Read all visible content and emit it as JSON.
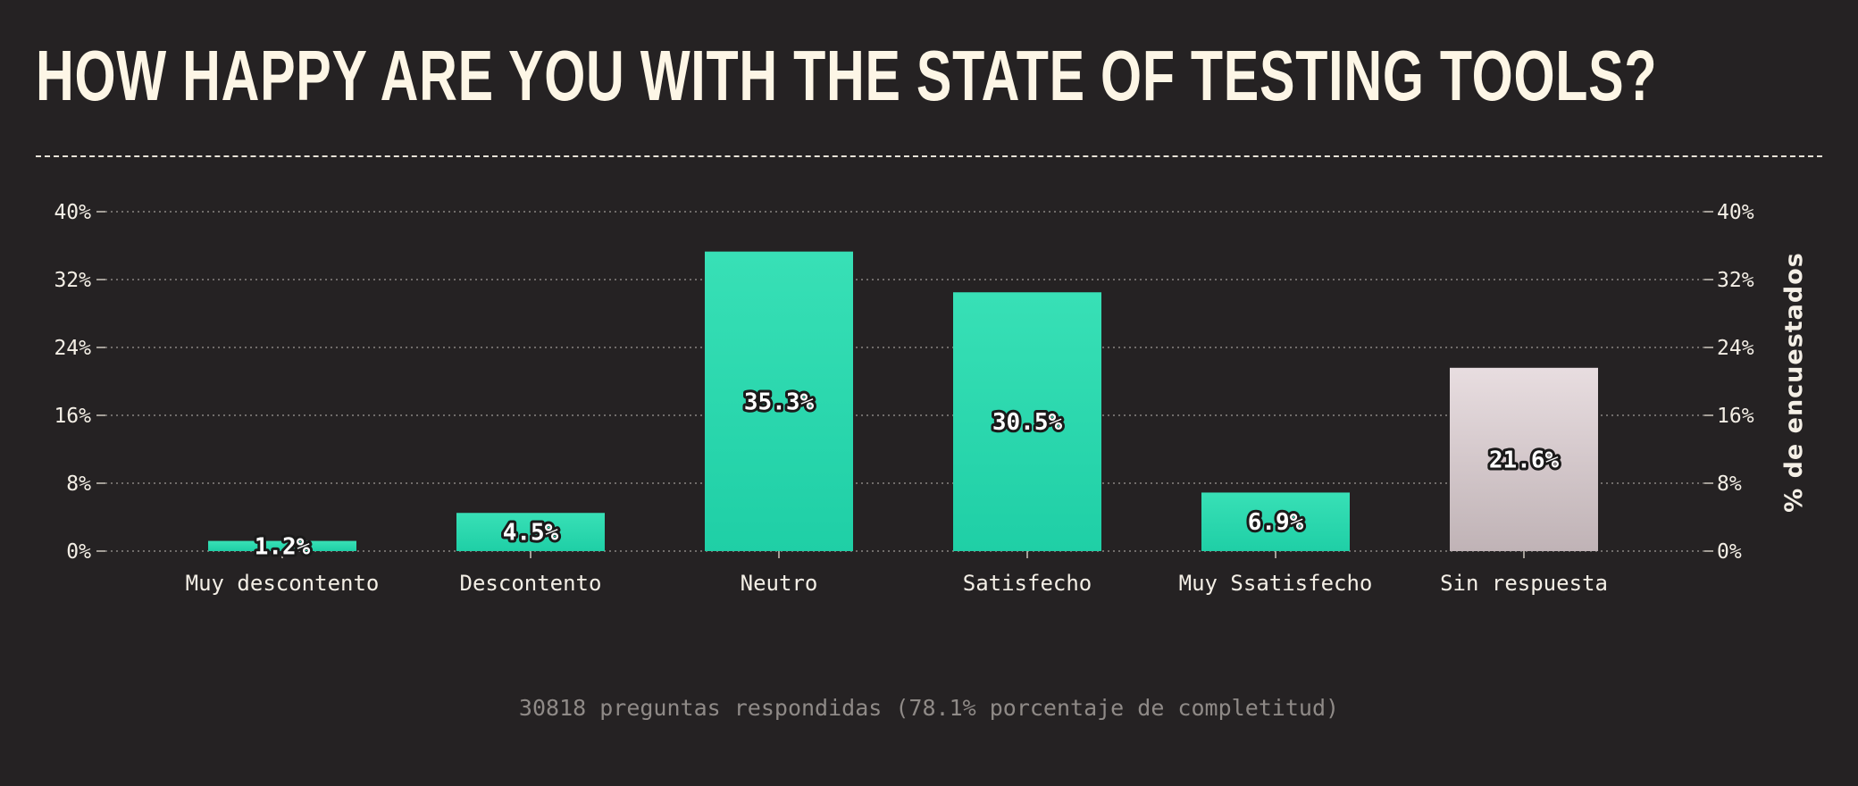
{
  "title": "HOW HAPPY ARE YOU WITH THE STATE OF TESTING TOOLS?",
  "footer": "30818 preguntas respondidas (78.1% porcentaje de completitud)",
  "colors": {
    "background": "#252223",
    "bar_top": "#38e0b6",
    "bar_bottom": "#1fcfa6",
    "no_answer_top": "#e8dde0",
    "no_answer_bottom": "#c0b3b6",
    "text": "#f4efe6"
  },
  "chart_data": {
    "type": "bar",
    "categories": [
      "Muy descontento",
      "Descontento",
      "Neutro",
      "Satisfecho",
      "Muy Ssatisfecho",
      "Sin respuesta"
    ],
    "values": [
      1.2,
      4.5,
      35.3,
      30.5,
      6.9,
      21.6
    ],
    "value_labels": [
      "1.2%",
      "4.5%",
      "35.3%",
      "30.5%",
      "6.9%",
      "21.6%"
    ],
    "bar_styles": [
      "positive",
      "positive",
      "positive",
      "positive",
      "positive",
      "no-answer"
    ],
    "ylabel": "% de encuestados",
    "ylim": [
      0,
      40
    ],
    "yticks": [
      0,
      8,
      16,
      24,
      32,
      40
    ],
    "ytick_labels": [
      "0%",
      "8%",
      "16%",
      "24%",
      "32%",
      "40%"
    ],
    "grid": true
  }
}
